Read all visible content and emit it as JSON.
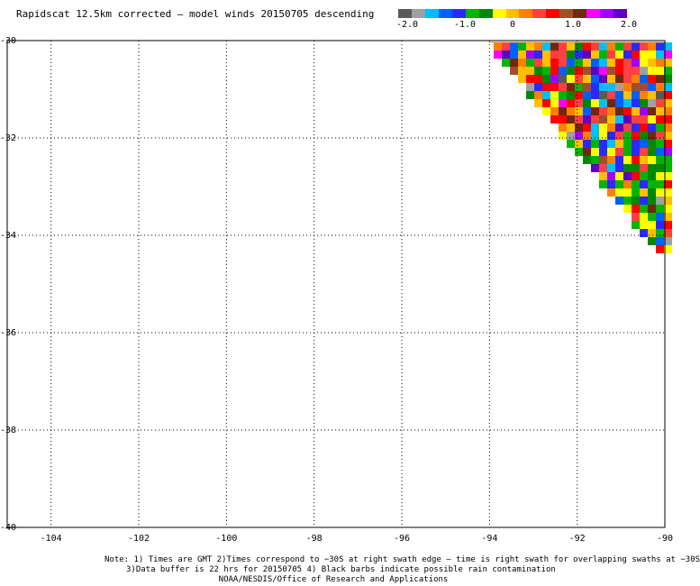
{
  "title": "Rapidscat 12.5km corrected — model winds 20150705 descending",
  "colorbar": {
    "colors": [
      "#5a5a5a",
      "#a0a0a0",
      "#00bfff",
      "#0060ff",
      "#2a2aff",
      "#00b400",
      "#008800",
      "#ffff00",
      "#ffc000",
      "#ff8000",
      "#ff4040",
      "#ff0000",
      "#a05028",
      "#702810",
      "#ff00ff",
      "#a000ff",
      "#6000c0"
    ],
    "labels": [
      "-2.0",
      "-1.0",
      "0",
      "1.0",
      "2.0"
    ]
  },
  "chart_data": {
    "type": "heatmap",
    "xlim": [
      -105,
      -90
    ],
    "ylim": [
      -40,
      -30
    ],
    "x_ticks": [
      "-104",
      "-102",
      "-100",
      "-98",
      "-96",
      "-94",
      "-92",
      "-90"
    ],
    "y_ticks": [
      "-30",
      "-32",
      "-34",
      "-36",
      "-38",
      "-40"
    ],
    "grid": true,
    "swath": {
      "description_values": "wind speed difference (corrected minus model), colour-coded",
      "value_range": [
        -2.0,
        2.0
      ],
      "west_edge_at_lat_-30": -93.9,
      "south_tip_lat": -34.2,
      "east_edge_lon": -90
    }
  },
  "notes": {
    "line1": "Note: 1) Times are GMT 2)Times correspond to −30S at right swath edge — time is right swath for overlapping swaths at −30S",
    "line2": "3)Data buffer is 22 hrs for 20150705 4) Black barbs indicate possible rain contamination",
    "line3": "NOAA/NESDIS/Office of Research and Applications"
  }
}
